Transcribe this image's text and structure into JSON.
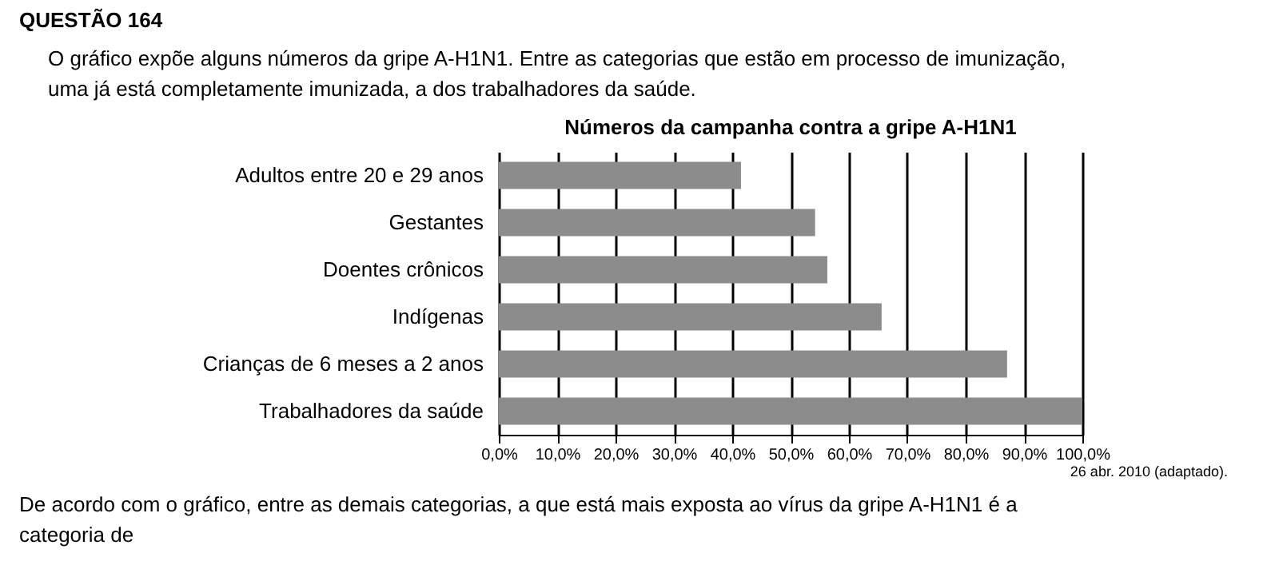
{
  "chart_data": {
    "type": "bar",
    "orientation": "horizontal",
    "title": "Números da campanha contra a gripe A-H1N1",
    "categories": [
      "Adultos entre 20 e 29 anos",
      "Gestantes",
      "Doentes crônicos",
      "Indígenas",
      "Crianças de 6 meses a 2 anos",
      "Trabalhadores da saúde"
    ],
    "values": [
      41.5,
      54.2,
      56.3,
      65.6,
      87.1,
      100
    ],
    "color": "#8c8c8c",
    "xlim": [
      0,
      100
    ],
    "xticks": [
      {
        "value": 0,
        "label": "0,0%"
      },
      {
        "value": 10,
        "label": "10,0%"
      },
      {
        "value": 20,
        "label": "20,0%"
      },
      {
        "value": 30,
        "label": "30,0%"
      },
      {
        "value": 40,
        "label": "40,0%"
      },
      {
        "value": 50,
        "label": "50,0%"
      },
      {
        "value": 60,
        "label": "60,0%"
      },
      {
        "value": 70,
        "label": "70,0%"
      },
      {
        "value": 80,
        "label": "80,0%"
      },
      {
        "value": 90,
        "label": "90,0%"
      },
      {
        "value": 100,
        "label": "100,0%"
      }
    ],
    "grid": "x",
    "annotations": [
      "QUESTÃO 164",
      "O gráfico expõe alguns números da gripe A-H1N1. Entre as categorias que estão em processo de imunização, uma já está completamente imunizada, a dos trabalhadores da saúde.",
      "26 abr. 2010 (adaptado).",
      "De acordo com o gráfico, entre as demais categorias, a que está mais exposta ao vírus da gripe A-H1N1 é a categoria de"
    ]
  }
}
